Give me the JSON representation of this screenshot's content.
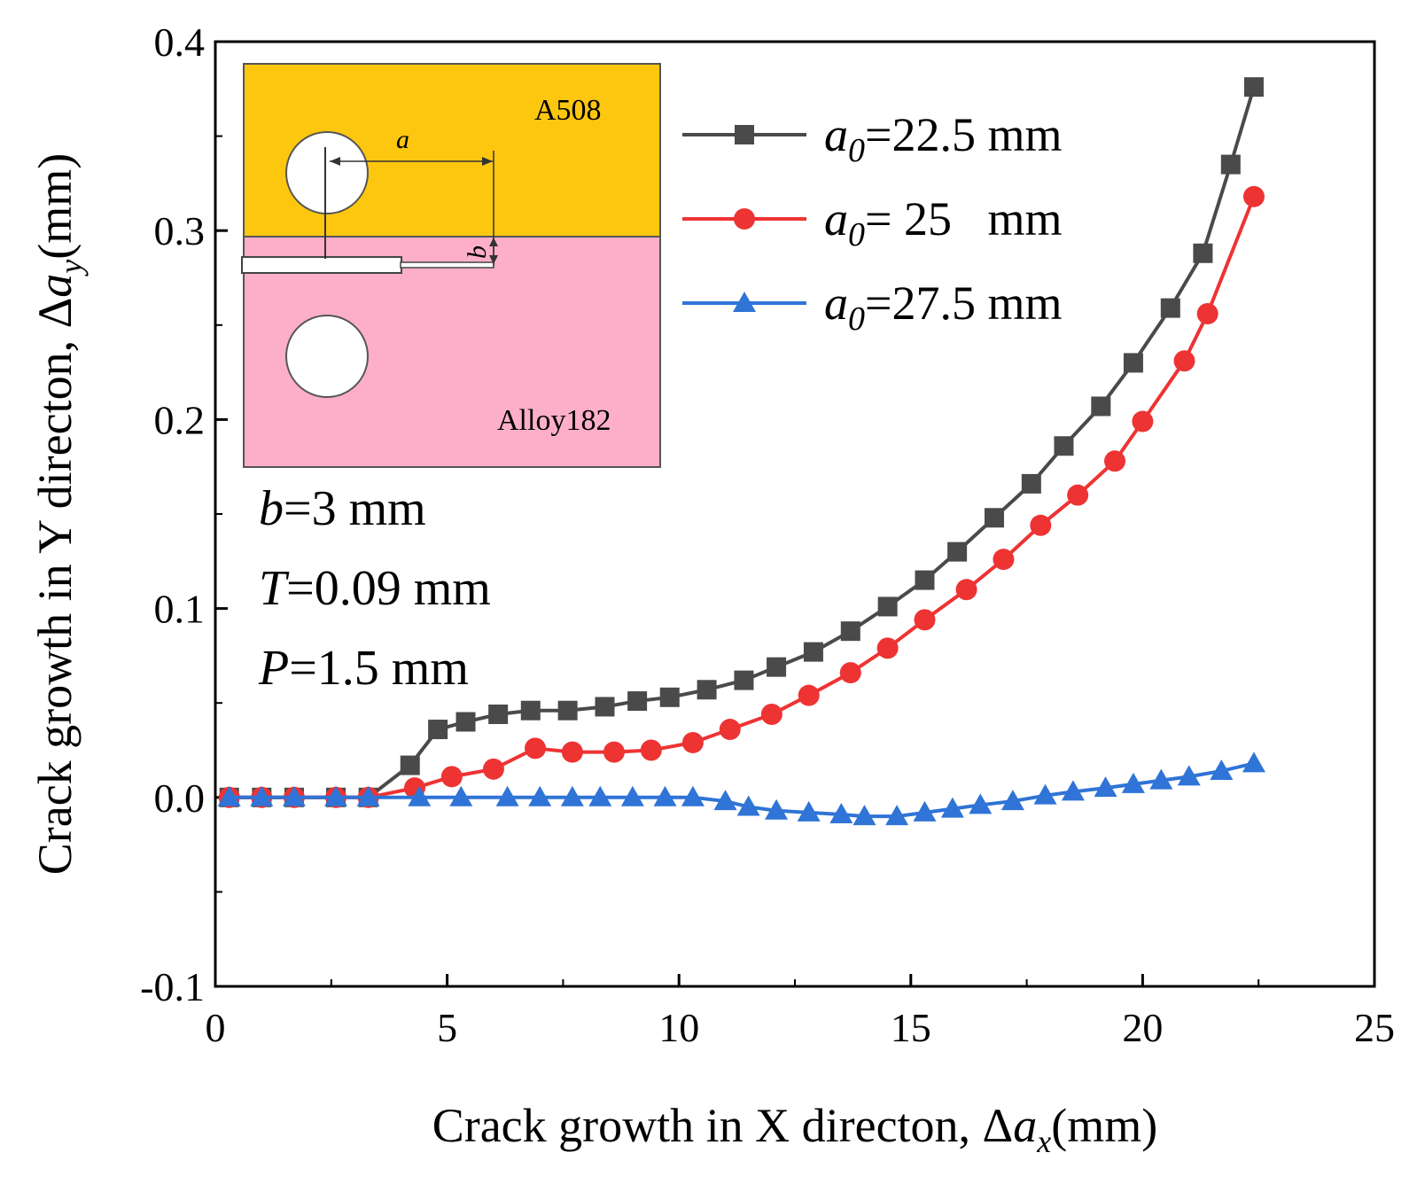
{
  "chart_data": {
    "type": "line",
    "xlabel": {
      "prefix": "Crack growth in X directon, Δ",
      "var": "a",
      "sub": "x",
      "suffix": "(mm)"
    },
    "ylabel": {
      "prefix": "Crack growth in Y directon, Δ",
      "var": "a",
      "sub": "y",
      "suffix": "(mm)"
    },
    "xlim": [
      0,
      25
    ],
    "ylim": [
      -0.1,
      0.4
    ],
    "xticks": [
      0,
      5,
      10,
      15,
      20,
      25
    ],
    "xtick_labels": [
      "0",
      "5",
      "10",
      "15",
      "20",
      "25"
    ],
    "yticks": [
      -0.1,
      0.0,
      0.1,
      0.2,
      0.3,
      0.4
    ],
    "ytick_labels": [
      "-0.1",
      "0.0",
      "0.1",
      "0.2",
      "0.3",
      "0.4"
    ],
    "series": [
      {
        "name": "a0=22.5 mm",
        "legend_var": "a",
        "legend_sub": "0",
        "legend_rest": "=22.5 mm",
        "color": "#4a4a4a",
        "marker": "square",
        "x": [
          0.3,
          1.0,
          1.7,
          2.6,
          3.3,
          4.2,
          4.8,
          5.4,
          6.1,
          6.8,
          7.6,
          8.4,
          9.1,
          9.8,
          10.6,
          11.4,
          12.1,
          12.9,
          13.7,
          14.5,
          15.3,
          16.0,
          16.8,
          17.6,
          18.3,
          19.1,
          19.8,
          20.6,
          21.3,
          21.9,
          22.4
        ],
        "y": [
          0.0,
          0.0,
          0.0,
          0.0,
          0.0,
          0.017,
          0.036,
          0.04,
          0.044,
          0.046,
          0.046,
          0.048,
          0.051,
          0.053,
          0.057,
          0.062,
          0.069,
          0.077,
          0.088,
          0.101,
          0.115,
          0.13,
          0.148,
          0.166,
          0.186,
          0.207,
          0.23,
          0.259,
          0.288,
          0.335,
          0.376
        ]
      },
      {
        "name": "a0= 25   mm",
        "legend_var": "a",
        "legend_sub": "0",
        "legend_rest": "= 25   mm",
        "color": "#ee3333",
        "marker": "circle",
        "x": [
          0.3,
          1.0,
          1.7,
          2.6,
          3.3,
          4.3,
          5.1,
          6.0,
          6.9,
          7.7,
          8.6,
          9.4,
          10.3,
          11.1,
          12.0,
          12.8,
          13.7,
          14.5,
          15.3,
          16.2,
          17.0,
          17.8,
          18.6,
          19.4,
          20.0,
          20.9,
          21.4,
          22.4
        ],
        "y": [
          0.0,
          0.0,
          0.0,
          0.0,
          0.0,
          0.005,
          0.011,
          0.015,
          0.026,
          0.024,
          0.024,
          0.025,
          0.029,
          0.036,
          0.044,
          0.054,
          0.066,
          0.079,
          0.094,
          0.11,
          0.126,
          0.144,
          0.16,
          0.178,
          0.199,
          0.231,
          0.256,
          0.318
        ]
      },
      {
        "name": "a0=27.5 mm",
        "legend_var": "a",
        "legend_sub": "0",
        "legend_rest": "=27.5 mm",
        "color": "#2f74d6",
        "marker": "triangle",
        "x": [
          0.3,
          1.0,
          1.7,
          2.6,
          3.3,
          4.4,
          5.3,
          6.3,
          7.0,
          7.7,
          8.3,
          9.0,
          9.7,
          10.3,
          11.0,
          11.5,
          12.1,
          12.8,
          13.5,
          14.0,
          14.7,
          15.3,
          15.9,
          16.5,
          17.2,
          17.9,
          18.5,
          19.2,
          19.8,
          20.4,
          21.0,
          21.7,
          22.4
        ],
        "y": [
          0.0,
          0.0,
          0.0,
          0.0,
          0.0,
          0.0,
          0.0,
          0.0,
          0.0,
          0.0,
          0.0,
          0.0,
          0.0,
          0.0,
          -0.002,
          -0.005,
          -0.007,
          -0.008,
          -0.009,
          -0.01,
          -0.01,
          -0.008,
          -0.006,
          -0.004,
          -0.002,
          0.001,
          0.003,
          0.005,
          0.007,
          0.009,
          0.011,
          0.014,
          0.018
        ]
      }
    ],
    "legend": "top-right",
    "annotations": [
      {
        "var": "b",
        "rest": "=3 mm"
      },
      {
        "var": "T",
        "rest": "=0.09 mm"
      },
      {
        "var": "P",
        "rest": "=1.5 mm"
      }
    ],
    "inset": {
      "upper_material": "A508",
      "lower_material": "Alloy182",
      "upper_color": "#fdc70f",
      "lower_color": "#fdafc9",
      "dim_a": "a",
      "dim_b": "b"
    }
  }
}
